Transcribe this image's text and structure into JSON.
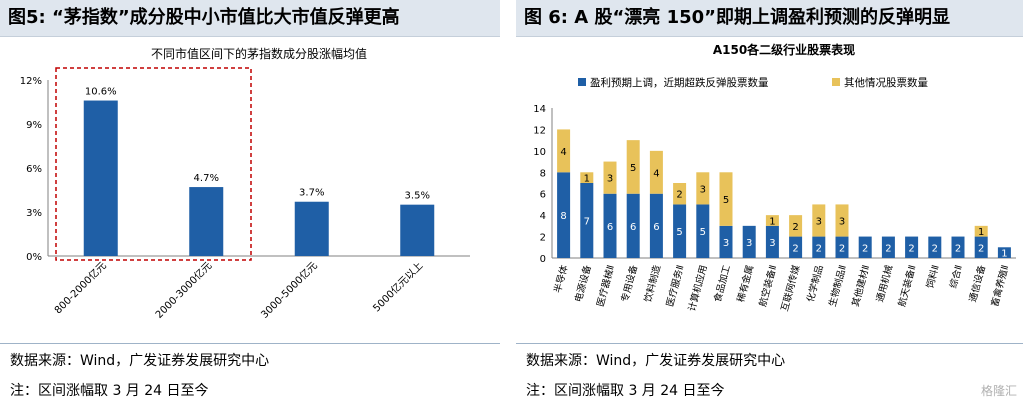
{
  "left": {
    "figure_no": "图5:",
    "figure_title": "“茅指数”成分股中小市值比大市值反弹更高",
    "source": "数据来源：Wind，广发证券发展研究中心",
    "note": "注：区间涨幅取 3 月 24 日至今",
    "chart_data": {
      "type": "bar",
      "title": "不同市值区间下的茅指数成分股涨幅均值",
      "categories": [
        "800-2000亿元",
        "2000-3000亿元",
        "3000-5000亿元",
        "5000亿元以上"
      ],
      "values": [
        10.6,
        4.7,
        3.7,
        3.5
      ],
      "data_labels": [
        "10.6%",
        "4.7%",
        "3.7%",
        "3.5%"
      ],
      "ylim": [
        0,
        12
      ],
      "yticks": [
        0,
        3,
        6,
        9,
        12
      ],
      "ytick_labels": [
        "0%",
        "3%",
        "6%",
        "9%",
        "12%"
      ],
      "bar_color": "#1f5fa6",
      "highlight_box_color": "#c00000",
      "highlight_categories": [
        "800-2000亿元",
        "2000-3000亿元"
      ]
    }
  },
  "right": {
    "figure_no": "图 6:",
    "figure_title": "A 股“漂亮 150”即期上调盈利预测的反弹明显",
    "source": "数据来源：Wind，广发证券发展研究中心",
    "note": "注：区间涨幅取 3 月 24 日至今",
    "watermark": "格隆汇",
    "chart_data": {
      "type": "bar",
      "stacked": true,
      "title": "A150各二级行业股票表现",
      "categories": [
        "半导体",
        "电源设备",
        "医疗器械Ⅱ",
        "专用设备",
        "饮料制造",
        "医疗服务Ⅱ",
        "计算机应用",
        "食品加工",
        "稀有金属",
        "航空装备Ⅱ",
        "互联网传媒",
        "化学制品",
        "生物制品Ⅱ",
        "其他建材Ⅱ",
        "通用机械",
        "航天装备Ⅱ",
        "饲料Ⅱ",
        "综合Ⅱ",
        "通信设备",
        "畜禽养殖Ⅱ"
      ],
      "series": [
        {
          "name": "盈利预期上调，近期超跌反弹股票数量",
          "color": "#1f5fa6",
          "values": [
            8,
            7,
            6,
            6,
            6,
            5,
            5,
            3,
            3,
            3,
            2,
            2,
            2,
            2,
            2,
            2,
            2,
            2,
            2,
            1
          ]
        },
        {
          "name": "其他情况股票数量",
          "color": "#e8c25a",
          "values": [
            4,
            1,
            3,
            5,
            4,
            2,
            3,
            5,
            0,
            1,
            2,
            3,
            3,
            0,
            0,
            0,
            0,
            0,
            1,
            0
          ]
        }
      ],
      "ylim": [
        0,
        14
      ],
      "yticks": [
        0,
        2,
        4,
        6,
        8,
        10,
        12,
        14
      ],
      "ytick_labels": [
        "0",
        "2",
        "4",
        "6",
        "8",
        "10",
        "12",
        "14"
      ],
      "legend_position": "top"
    }
  }
}
